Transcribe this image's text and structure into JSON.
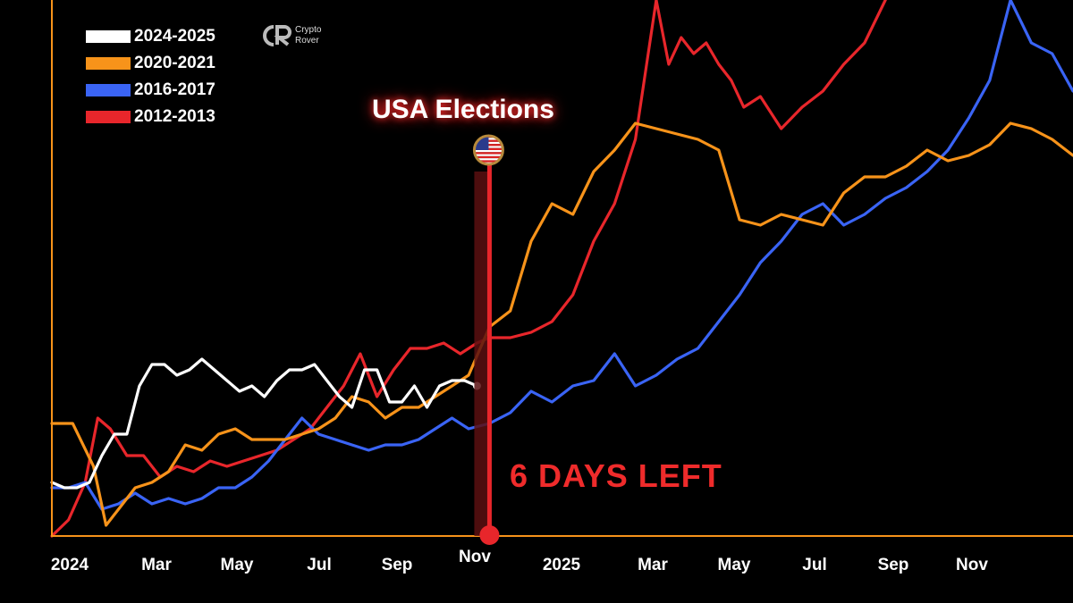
{
  "brand": {
    "line1": "Crypto",
    "line2": "Rover"
  },
  "annotation": {
    "title": "USA Elections",
    "countdown": "6 DAYS LEFT"
  },
  "colors": {
    "axis": "#f7931a",
    "marker": "#e8262b",
    "marker_shadow": "#5a0f10"
  },
  "chart_data": {
    "type": "line",
    "x_tick_labels": [
      "2024",
      "Mar",
      "May",
      "Jul",
      "Sep",
      "Nov",
      "2025",
      "Mar",
      "May",
      "Jul",
      "Sep",
      "Nov"
    ],
    "x_unit": "months since January of the first year",
    "xlim": [
      0,
      24.5
    ],
    "ylim": [
      0,
      100
    ],
    "grid": false,
    "legend_position": "top-left",
    "event_marker": {
      "label": "Nov",
      "x": 10.5,
      "icon": "us-flag-icon"
    },
    "series": [
      {
        "name": "2024-2025",
        "color": "#ffffff",
        "x": [
          0,
          0.3,
          0.6,
          0.9,
          1.2,
          1.5,
          1.8,
          2.1,
          2.4,
          2.7,
          3.0,
          3.3,
          3.6,
          3.9,
          4.2,
          4.5,
          4.8,
          5.1,
          5.4,
          5.7,
          6.0,
          6.3,
          6.6,
          6.9,
          7.2,
          7.5,
          7.8,
          8.1,
          8.4,
          8.7,
          9.0,
          9.3,
          9.6,
          9.9,
          10.2
        ],
        "y": [
          10,
          9,
          9,
          10,
          15,
          19,
          19,
          28,
          32,
          32,
          30,
          31,
          33,
          31,
          29,
          27,
          28,
          26,
          29,
          31,
          31,
          32,
          29,
          26,
          24,
          31,
          31,
          25,
          25,
          28,
          24,
          28,
          29,
          29,
          28
        ]
      },
      {
        "name": "2020-2021",
        "color": "#f7931a",
        "x": [
          0,
          0.5,
          1.0,
          1.3,
          1.6,
          2.0,
          2.4,
          2.8,
          3.2,
          3.6,
          4.0,
          4.4,
          4.8,
          5.2,
          5.6,
          6.0,
          6.4,
          6.8,
          7.2,
          7.6,
          8.0,
          8.4,
          8.8,
          9.2,
          9.6,
          10.0,
          10.5,
          11.0,
          11.5,
          12.0,
          12.5,
          13.0,
          13.5,
          14.0,
          14.5,
          15.0,
          15.5,
          16.0,
          16.5,
          17.0,
          17.5,
          18.0,
          18.5,
          19.0,
          19.5,
          20.0,
          20.5,
          21.0,
          21.5,
          22.0,
          22.5,
          23.0,
          23.5,
          24.0,
          24.5
        ],
        "y": [
          21,
          21,
          13,
          2,
          5,
          9,
          10,
          12,
          17,
          16,
          19,
          20,
          18,
          18,
          18,
          19,
          20,
          22,
          26,
          25,
          22,
          24,
          24,
          26,
          28,
          30,
          39,
          42,
          55,
          62,
          60,
          68,
          72,
          77,
          76,
          75,
          74,
          72,
          59,
          58,
          60,
          59,
          58,
          64,
          67,
          67,
          69,
          72,
          70,
          71,
          73,
          77,
          76,
          74,
          71
        ]
      },
      {
        "name": "2016-2017",
        "color": "#3a64f5",
        "x": [
          0,
          0.4,
          0.8,
          1.2,
          1.6,
          2.0,
          2.4,
          2.8,
          3.2,
          3.6,
          4.0,
          4.4,
          4.8,
          5.2,
          5.6,
          6.0,
          6.4,
          6.8,
          7.2,
          7.6,
          8.0,
          8.4,
          8.8,
          9.2,
          9.6,
          10.0,
          10.5,
          11.0,
          11.5,
          12.0,
          12.5,
          13.0,
          13.5,
          14.0,
          14.5,
          15.0,
          15.5,
          16.0,
          16.5,
          17.0,
          17.5,
          18.0,
          18.5,
          19.0,
          19.5,
          20.0,
          20.5,
          21.0,
          21.5,
          22.0,
          22.5,
          23.0,
          23.5,
          24.0,
          24.5
        ],
        "y": [
          9,
          9,
          10,
          5,
          6,
          8,
          6,
          7,
          6,
          7,
          9,
          9,
          11,
          14,
          18,
          22,
          19,
          18,
          17,
          16,
          17,
          17,
          18,
          20,
          22,
          20,
          21,
          23,
          27,
          25,
          28,
          29,
          34,
          28,
          30,
          33,
          35,
          40,
          45,
          51,
          55,
          60,
          62,
          58,
          60,
          63,
          65,
          68,
          72,
          78,
          85,
          100,
          92,
          90,
          83
        ]
      },
      {
        "name": "2012-2013",
        "color": "#e8262b",
        "x": [
          0,
          0.4,
          0.8,
          1.1,
          1.4,
          1.8,
          2.2,
          2.6,
          3.0,
          3.4,
          3.8,
          4.2,
          4.6,
          5.0,
          5.4,
          5.8,
          6.2,
          6.6,
          7.0,
          7.4,
          7.8,
          8.2,
          8.6,
          9.0,
          9.4,
          9.8,
          10.2,
          10.5,
          11.0,
          11.5,
          12.0,
          12.5,
          13.0,
          13.5,
          14.0,
          14.5,
          14.8,
          15.1,
          15.4,
          15.7,
          16.0,
          16.3,
          16.6,
          17.0,
          17.5,
          18.0,
          18.5,
          19.0,
          19.5,
          20.0
        ],
        "y": [
          0,
          3,
          10,
          22,
          20,
          15,
          15,
          11,
          13,
          12,
          14,
          13,
          14,
          15,
          16,
          18,
          20,
          24,
          28,
          34,
          26,
          31,
          35,
          35,
          36,
          34,
          36,
          37,
          37,
          38,
          40,
          45,
          55,
          62,
          74,
          100,
          88,
          93,
          90,
          92,
          88,
          85,
          80,
          82,
          76,
          80,
          83,
          88,
          92,
          100
        ]
      }
    ]
  }
}
